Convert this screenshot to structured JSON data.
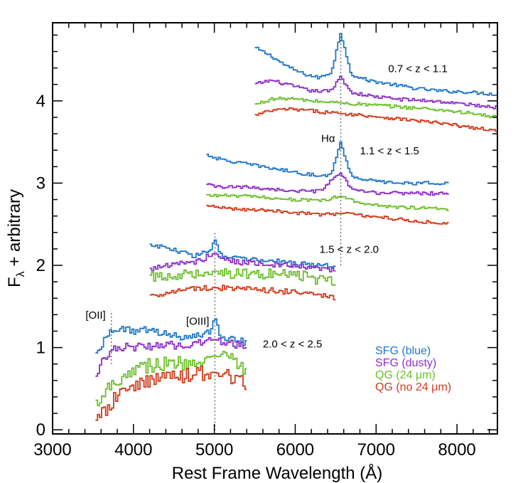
{
  "chart_data": {
    "type": "line",
    "xlabel": "Rest Frame Wavelength (Å)",
    "ylabel": "F_λ + arbitrary",
    "ylabel_main": "F",
    "ylabel_sub": "λ",
    "ylabel_rest": " + arbitrary",
    "xlim": [
      3000,
      8500
    ],
    "ylim": [
      -0.05,
      4.95
    ],
    "xticks": [
      3000,
      4000,
      5000,
      6000,
      7000,
      8000
    ],
    "yticks": [
      0,
      1,
      2,
      3,
      4
    ],
    "grid": false,
    "legend_position": "bottom-right",
    "line_markers": [
      {
        "label": "Hα",
        "x": 6563,
        "y_range": [
          2.0,
          4.85
        ],
        "label_y": 3.5
      },
      {
        "label": "[OIII]",
        "x": 5007,
        "y_range": [
          0.0,
          2.4
        ],
        "label_y": 1.28
      },
      {
        "label": "[OII]",
        "x": 3727,
        "y_range": [
          0.8,
          1.45
        ],
        "label_y": 1.35
      }
    ],
    "panels": [
      {
        "label": "0.7 < z < 1.1",
        "label_x": 7150,
        "label_y": 4.35,
        "x_range": [
          5500,
          8500
        ],
        "peak_x": 6563
      },
      {
        "label": "1.1 < z < 1.5",
        "label_x": 6800,
        "label_y": 3.35,
        "x_range": [
          4900,
          7900
        ],
        "peak_x": 6563
      },
      {
        "label": "1.5 < z < 2.0",
        "label_x": 6300,
        "label_y": 2.15,
        "x_range": [
          4200,
          6500
        ],
        "peak_x": 5007
      },
      {
        "label": "2.0 < z < 2.5",
        "label_x": 5600,
        "label_y": 1.0,
        "x_range": [
          3530,
          5400
        ],
        "peak_x": 5007
      }
    ],
    "series": [
      {
        "name": "SFG (blue)",
        "color": "#1f77c8",
        "values": [
          [
            [
              5500,
              4.65
            ],
            [
              5600,
              4.6
            ],
            [
              5700,
              4.55
            ],
            [
              5900,
              4.42
            ],
            [
              6100,
              4.33
            ],
            [
              6300,
              4.28
            ],
            [
              6450,
              4.35
            ],
            [
              6563,
              4.82
            ],
            [
              6700,
              4.32
            ],
            [
              6900,
              4.25
            ],
            [
              7200,
              4.2
            ],
            [
              7500,
              4.15
            ],
            [
              7800,
              4.12
            ],
            [
              8100,
              4.11
            ],
            [
              8500,
              4.08
            ]
          ],
          [
            [
              4900,
              3.35
            ],
            [
              5100,
              3.28
            ],
            [
              5300,
              3.25
            ],
            [
              5600,
              3.2
            ],
            [
              5900,
              3.15
            ],
            [
              6200,
              3.1
            ],
            [
              6450,
              3.1
            ],
            [
              6563,
              3.5
            ],
            [
              6700,
              3.08
            ],
            [
              7000,
              3.02
            ],
            [
              7300,
              3.0
            ],
            [
              7600,
              3.0
            ],
            [
              7900,
              3.0
            ]
          ],
          [
            [
              4200,
              2.25
            ],
            [
              4400,
              2.22
            ],
            [
              4600,
              2.15
            ],
            [
              4800,
              2.12
            ],
            [
              4950,
              2.18
            ],
            [
              5007,
              2.32
            ],
            [
              5100,
              2.1
            ],
            [
              5400,
              2.07
            ],
            [
              5700,
              2.05
            ],
            [
              6000,
              2.02
            ],
            [
              6300,
              2.0
            ],
            [
              6500,
              1.98
            ]
          ],
          [
            [
              3530,
              0.9
            ],
            [
              3620,
              1.05
            ],
            [
              3727,
              1.23
            ],
            [
              3900,
              1.22
            ],
            [
              4200,
              1.2
            ],
            [
              4500,
              1.15
            ],
            [
              4800,
              1.13
            ],
            [
              4960,
              1.2
            ],
            [
              5007,
              1.38
            ],
            [
              5100,
              1.1
            ],
            [
              5300,
              1.1
            ],
            [
              5400,
              1.05
            ]
          ]
        ]
      },
      {
        "name": "SFG (dusty)",
        "color": "#8e2ec8",
        "values": [
          [
            [
              5500,
              4.2
            ],
            [
              5700,
              4.25
            ],
            [
              5900,
              4.2
            ],
            [
              6200,
              4.12
            ],
            [
              6450,
              4.12
            ],
            [
              6563,
              4.3
            ],
            [
              6700,
              4.1
            ],
            [
              7000,
              4.05
            ],
            [
              7300,
              4.02
            ],
            [
              7700,
              4.0
            ],
            [
              8100,
              3.96
            ],
            [
              8500,
              3.92
            ]
          ],
          [
            [
              4900,
              2.98
            ],
            [
              5100,
              2.95
            ],
            [
              5400,
              2.95
            ],
            [
              5700,
              2.93
            ],
            [
              6000,
              2.9
            ],
            [
              6300,
              2.9
            ],
            [
              6563,
              3.12
            ],
            [
              6700,
              2.92
            ],
            [
              7000,
              2.88
            ],
            [
              7400,
              2.88
            ],
            [
              7900,
              2.87
            ]
          ],
          [
            [
              4200,
              1.95
            ],
            [
              4400,
              2.0
            ],
            [
              4600,
              2.02
            ],
            [
              4800,
              2.05
            ],
            [
              5007,
              2.15
            ],
            [
              5200,
              2.05
            ],
            [
              5500,
              2.03
            ],
            [
              5800,
              2.0
            ],
            [
              6100,
              1.98
            ],
            [
              6400,
              1.95
            ],
            [
              6500,
              1.93
            ]
          ],
          [
            [
              3530,
              0.6
            ],
            [
              3620,
              0.85
            ],
            [
              3727,
              0.98
            ],
            [
              3900,
              1.0
            ],
            [
              4200,
              1.02
            ],
            [
              4500,
              1.03
            ],
            [
              4800,
              1.05
            ],
            [
              5007,
              1.1
            ],
            [
              5200,
              1.05
            ],
            [
              5400,
              1.02
            ]
          ]
        ]
      },
      {
        "name": "QG (24 μm)",
        "color": "#6cbf2a",
        "values": [
          [
            [
              5500,
              3.95
            ],
            [
              5700,
              4.02
            ],
            [
              5900,
              4.03
            ],
            [
              6200,
              4.0
            ],
            [
              6500,
              3.98
            ],
            [
              6800,
              3.96
            ],
            [
              7100,
              3.94
            ],
            [
              7400,
              3.92
            ],
            [
              7700,
              3.9
            ],
            [
              8000,
              3.87
            ],
            [
              8300,
              3.83
            ],
            [
              8500,
              3.8
            ]
          ],
          [
            [
              4900,
              2.85
            ],
            [
              5100,
              2.85
            ],
            [
              5400,
              2.84
            ],
            [
              5700,
              2.82
            ],
            [
              6000,
              2.8
            ],
            [
              6300,
              2.78
            ],
            [
              6563,
              2.84
            ],
            [
              6800,
              2.76
            ],
            [
              7100,
              2.72
            ],
            [
              7500,
              2.7
            ],
            [
              7900,
              2.68
            ]
          ],
          [
            [
              4200,
              1.85
            ],
            [
              4400,
              1.87
            ],
            [
              4700,
              1.9
            ],
            [
              5000,
              1.93
            ],
            [
              5300,
              1.9
            ],
            [
              5600,
              1.9
            ],
            [
              5900,
              1.88
            ],
            [
              6200,
              1.85
            ],
            [
              6400,
              1.8
            ],
            [
              6500,
              1.78
            ]
          ],
          [
            [
              3530,
              0.3
            ],
            [
              3620,
              0.45
            ],
            [
              3800,
              0.6
            ],
            [
              4000,
              0.75
            ],
            [
              4300,
              0.8
            ],
            [
              4600,
              0.8
            ],
            [
              4800,
              0.85
            ],
            [
              5000,
              0.9
            ],
            [
              5200,
              0.85
            ],
            [
              5400,
              0.7
            ]
          ]
        ]
      },
      {
        "name": "QG (no 24 μm)",
        "color": "#d13a1a",
        "values": [
          [
            [
              5500,
              3.82
            ],
            [
              5700,
              3.88
            ],
            [
              5900,
              3.9
            ],
            [
              6200,
              3.88
            ],
            [
              6500,
              3.85
            ],
            [
              6800,
              3.83
            ],
            [
              7100,
              3.8
            ],
            [
              7400,
              3.77
            ],
            [
              7700,
              3.74
            ],
            [
              8000,
              3.7
            ],
            [
              8300,
              3.66
            ],
            [
              8500,
              3.63
            ]
          ],
          [
            [
              4900,
              2.72
            ],
            [
              5100,
              2.7
            ],
            [
              5400,
              2.68
            ],
            [
              5700,
              2.67
            ],
            [
              6000,
              2.64
            ],
            [
              6300,
              2.62
            ],
            [
              6600,
              2.63
            ],
            [
              6900,
              2.6
            ],
            [
              7200,
              2.57
            ],
            [
              7600,
              2.53
            ],
            [
              7900,
              2.5
            ]
          ],
          [
            [
              4200,
              1.62
            ],
            [
              4400,
              1.67
            ],
            [
              4700,
              1.72
            ],
            [
              5000,
              1.73
            ],
            [
              5300,
              1.71
            ],
            [
              5600,
              1.7
            ],
            [
              5900,
              1.68
            ],
            [
              6200,
              1.66
            ],
            [
              6400,
              1.63
            ],
            [
              6500,
              1.6
            ]
          ],
          [
            [
              3530,
              0.05
            ],
            [
              3620,
              0.2
            ],
            [
              3800,
              0.4
            ],
            [
              4000,
              0.55
            ],
            [
              4300,
              0.62
            ],
            [
              4600,
              0.65
            ],
            [
              4800,
              0.68
            ],
            [
              5000,
              0.7
            ],
            [
              5200,
              0.65
            ],
            [
              5400,
              0.55
            ]
          ]
        ]
      }
    ]
  }
}
